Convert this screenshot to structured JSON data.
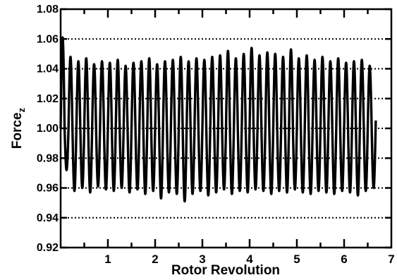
{
  "chart_data": {
    "type": "line",
    "title": "",
    "xlabel": "Rotor Revolution",
    "ylabel": "Force",
    "ylabel_subscript": "z",
    "xlim": [
      0,
      7
    ],
    "ylim": [
      0.92,
      1.08
    ],
    "x_ticks": [
      1,
      2,
      3,
      4,
      5,
      6,
      7
    ],
    "x_tick_labels": [
      "1",
      "2",
      "3",
      "4",
      "5",
      "6",
      "7"
    ],
    "y_ticks": [
      0.92,
      0.94,
      0.96,
      0.98,
      1.0,
      1.02,
      1.04,
      1.06,
      1.08
    ],
    "y_tick_labels": [
      "0.92",
      "0.94",
      "0.96",
      "0.98",
      "1.00",
      "1.02",
      "1.04",
      "1.06",
      "1.08"
    ],
    "grid": "horizontal dotted",
    "series": [
      {
        "color": "#000000",
        "x_start": 0,
        "x_end": 6.67,
        "cycles_per_revolution": 6,
        "mean": 1.0,
        "peaks": [
          1.061,
          1.048,
          1.045,
          1.047,
          1.043,
          1.045,
          1.044,
          1.046,
          1.042,
          1.044,
          1.045,
          1.047,
          1.043,
          1.045,
          1.046,
          1.048,
          1.045,
          1.047,
          1.046,
          1.048,
          1.049,
          1.052,
          1.047,
          1.05,
          1.054,
          1.049,
          1.051,
          1.05,
          1.048,
          1.053,
          1.047,
          1.049,
          1.046,
          1.048,
          1.045,
          1.047,
          1.044,
          1.045,
          1.046,
          1.042
        ],
        "troughs": [
          0.972,
          0.958,
          0.96,
          0.957,
          0.961,
          0.959,
          0.958,
          0.96,
          0.957,
          0.959,
          0.956,
          0.958,
          0.953,
          0.957,
          0.956,
          0.951,
          0.956,
          0.958,
          0.955,
          0.957,
          0.959,
          0.956,
          0.958,
          0.957,
          0.959,
          0.958,
          0.956,
          0.958,
          0.957,
          0.959,
          0.957,
          0.956,
          0.958,
          0.957,
          0.956,
          0.958,
          0.957,
          0.955,
          0.958,
          0.96
        ]
      }
    ]
  }
}
